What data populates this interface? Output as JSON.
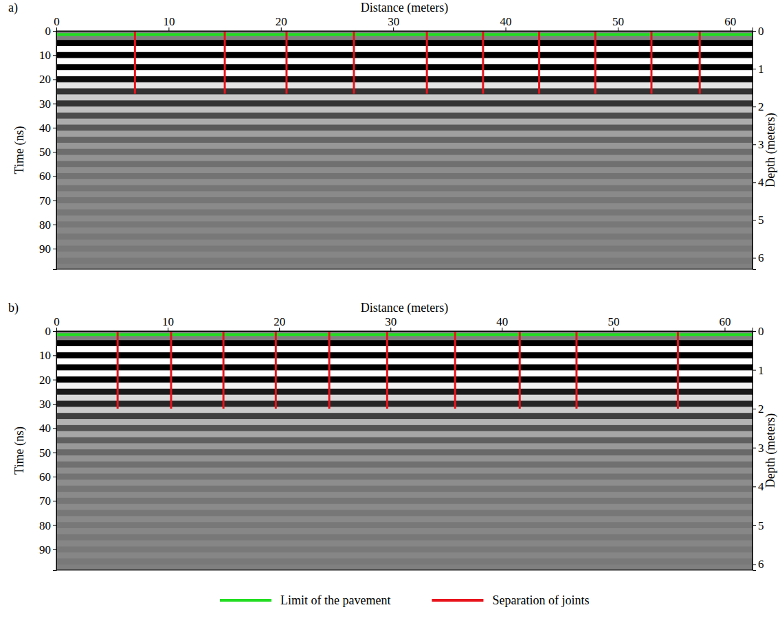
{
  "chart_data": [
    {
      "type": "radargram",
      "panel_label": "a)",
      "x_label": "Distance (meters)",
      "y_label": "Time (ns)",
      "y2_label": "Depth (meters)",
      "xlim": [
        0,
        62
      ],
      "xticks": [
        0,
        10,
        20,
        30,
        40,
        50,
        60
      ],
      "ylim": [
        0,
        98.5
      ],
      "yticks": [
        0,
        10,
        20,
        30,
        40,
        50,
        60,
        70,
        80,
        90
      ],
      "y2lim": [
        0,
        6.3
      ],
      "y2ticks": [
        0,
        1,
        2,
        3,
        4,
        5,
        6
      ],
      "reflector_times": [
        5,
        7.5,
        10,
        12.5,
        15,
        17.5,
        20,
        22.5,
        25,
        27.5,
        30,
        32.5,
        35,
        37.5,
        40,
        42.5,
        45,
        47.5,
        50,
        52.5,
        55,
        57.5,
        60,
        62.5,
        65,
        67.5,
        70,
        72.5,
        75,
        77.5,
        80,
        82.5,
        85,
        87.5,
        90,
        92.5,
        95
      ],
      "reflector_amplitudes": [
        1,
        -1,
        1,
        -1,
        1,
        -1,
        0.9,
        -0.8,
        0.6,
        -0.6,
        0.6,
        -0.5,
        0.4,
        -0.35,
        0.3,
        -0.25,
        0.2,
        -0.18,
        0.15,
        -0.14,
        0.12,
        -0.1,
        0.1,
        -0.1,
        0.08,
        -0.08,
        0.08,
        -0.08,
        0.07,
        -0.07,
        0.06,
        -0.06,
        0.06,
        -0.05,
        0.05,
        -0.05,
        0.05
      ],
      "series": [
        {
          "type": "hline",
          "color": "#22dd22",
          "values": [
            1.5
          ]
        },
        {
          "type": "vline",
          "color": "#e8141c",
          "x": [
            7,
            15,
            20.5,
            26.5,
            33,
            38,
            43,
            48,
            53,
            57.3
          ],
          "values": [
            26,
            26,
            26,
            26,
            26,
            26,
            26,
            26,
            26,
            26
          ]
        }
      ]
    },
    {
      "type": "radargram",
      "panel_label": "b)",
      "x_label": "Distance (meters)",
      "y_label": "Time (ns)",
      "y2_label": "Depth (meters)",
      "xlim": [
        0,
        62.5
      ],
      "xticks": [
        0,
        10,
        20,
        30,
        40,
        50,
        60
      ],
      "ylim": [
        0,
        98.5
      ],
      "yticks": [
        0,
        10,
        20,
        30,
        40,
        50,
        60,
        70,
        80,
        90
      ],
      "y2lim": [
        0,
        6.15
      ],
      "y2ticks": [
        0,
        1,
        2,
        3,
        4,
        5,
        6
      ],
      "reflector_times": [
        5,
        7.5,
        10,
        12.5,
        15,
        17.5,
        20,
        22.5,
        25,
        27.5,
        30,
        32.5,
        35,
        37.5,
        40,
        42.5,
        45,
        47.5,
        50,
        52.5,
        55,
        57.5,
        60,
        62.5,
        65,
        67.5,
        70,
        72.5,
        75,
        77.5,
        80,
        82.5,
        85,
        87.5,
        90,
        92.5,
        95
      ],
      "reflector_amplitudes": [
        1,
        -1,
        1,
        -1,
        1,
        -1,
        1,
        -0.9,
        0.8,
        -0.7,
        0.7,
        -0.6,
        0.5,
        -0.4,
        0.35,
        -0.3,
        0.25,
        -0.2,
        0.18,
        -0.15,
        0.12,
        -0.1,
        0.1,
        -0.1,
        0.08,
        -0.08,
        0.08,
        -0.08,
        0.07,
        -0.07,
        0.06,
        -0.06,
        0.06,
        -0.05,
        0.05,
        -0.05,
        0.05
      ],
      "legend": "bottom",
      "series": [
        {
          "name": "Limit of the pavement",
          "type": "hline",
          "color": "#22dd22",
          "values": [
            1.5
          ]
        },
        {
          "name": "Separation of joints",
          "type": "vline",
          "color": "#e8141c",
          "x": [
            5.5,
            10.3,
            15,
            19.7,
            24.5,
            29.7,
            35.8,
            41.6,
            46.7,
            55.8
          ],
          "values": [
            32,
            32,
            32,
            32,
            32,
            32,
            32,
            32,
            32,
            32
          ]
        }
      ]
    }
  ]
}
